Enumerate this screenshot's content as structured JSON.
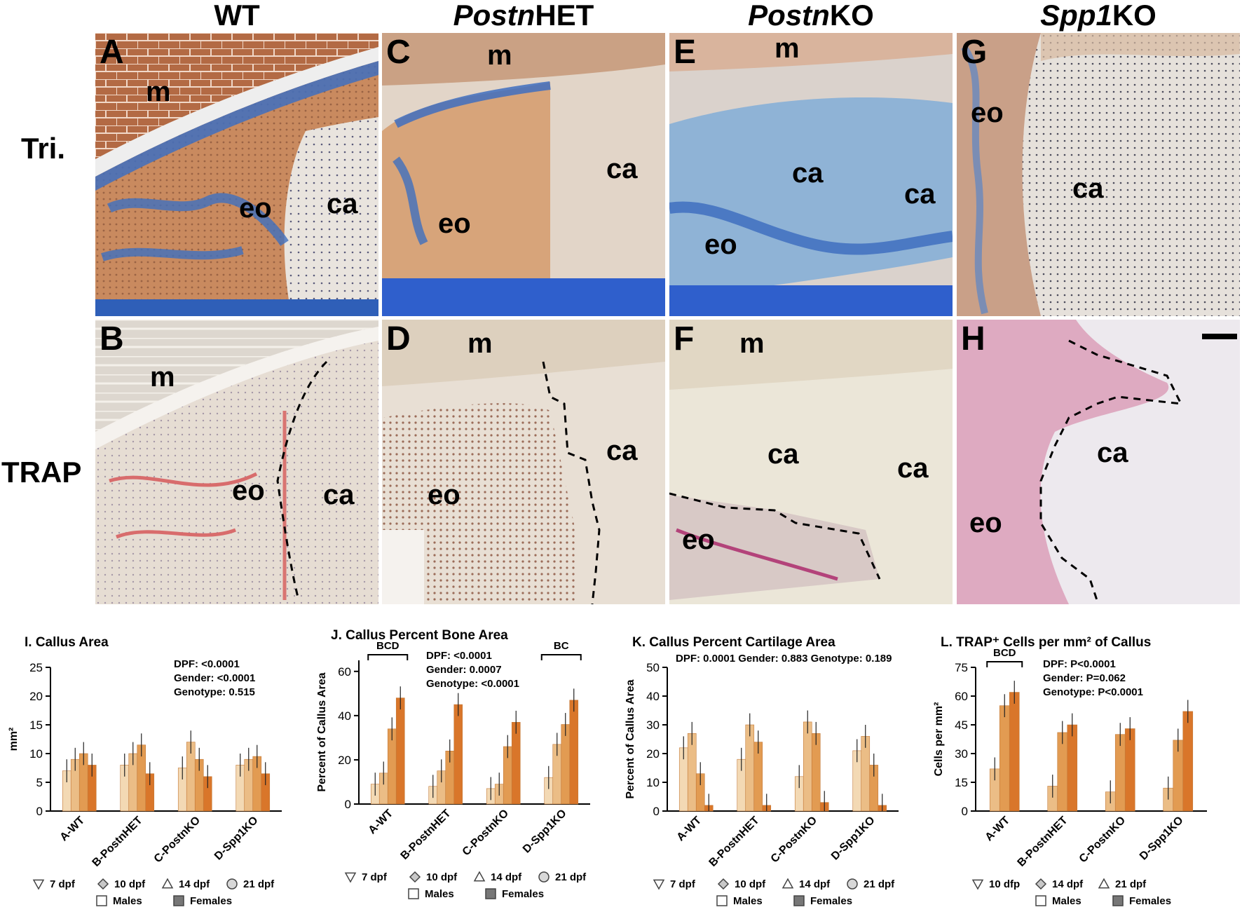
{
  "columns": [
    {
      "plain": "WT",
      "italic": "",
      "suffix": ""
    },
    {
      "plain": "",
      "italic": "Postn",
      "suffix": "HET"
    },
    {
      "plain": "",
      "italic": "Postn",
      "suffix": "KO"
    },
    {
      "plain": "",
      "italic": "Spp1",
      "suffix": "KO"
    }
  ],
  "rows": [
    "Tri.",
    "TRAP"
  ],
  "panels": [
    {
      "letter": "A",
      "labels": [
        "m",
        "eo",
        "ca"
      ]
    },
    {
      "letter": "B",
      "labels": [
        "m",
        "eo",
        "ca"
      ]
    },
    {
      "letter": "C",
      "labels": [
        "m",
        "ca",
        "eo"
      ]
    },
    {
      "letter": "D",
      "labels": [
        "m",
        "ca",
        "eo"
      ]
    },
    {
      "letter": "E",
      "labels": [
        "m",
        "ca",
        "ca",
        "eo"
      ]
    },
    {
      "letter": "F",
      "labels": [
        "m",
        "ca",
        "ca",
        "eo"
      ]
    },
    {
      "letter": "G",
      "labels": [
        "eo",
        "ca"
      ]
    },
    {
      "letter": "H",
      "labels": [
        "ca",
        "eo"
      ]
    }
  ],
  "colors": {
    "trichrome_blue": "#3f6fbf",
    "tissue_orange": "#c8875a",
    "cartilage": "#e9e4de",
    "trap_bg": "#e8e1d6",
    "trap_red": "#c4385b",
    "bar_light": "#f3d9b4",
    "bar_mid1": "#ebbd86",
    "bar_mid2": "#e29b52",
    "bar_dark": "#d9762a"
  },
  "chart_data": [
    {
      "type": "bar",
      "title": "I. Callus Area",
      "ylabel": "mm²",
      "ylim": [
        0,
        25
      ],
      "yticks": [
        0,
        5,
        10,
        15,
        20,
        25
      ],
      "categories": [
        "A-WT",
        "B-PostnHET",
        "C-PostnKO",
        "D-Spp1KO"
      ],
      "series": [
        {
          "name": "7 dpf",
          "values": [
            7,
            8,
            7.5,
            8
          ]
        },
        {
          "name": "10 dpf",
          "values": [
            9,
            10,
            12,
            9
          ]
        },
        {
          "name": "14 dpf",
          "values": [
            10,
            11.5,
            9,
            9.5
          ]
        },
        {
          "name": "21 dpf",
          "values": [
            8,
            6.5,
            6,
            6.5
          ]
        }
      ],
      "stats": [
        "DPF: <0.0001",
        "Gender: <0.0001",
        "Genotype: 0.515"
      ],
      "brackets": [],
      "legend": {
        "dpf": [
          "7 dpf",
          "10 dpf",
          "14 dpf",
          "21 dpf"
        ],
        "sex": [
          "Males",
          "Females"
        ]
      }
    },
    {
      "type": "bar",
      "title": "J. Callus Percent Bone Area",
      "ylabel": "Percent of Callus Area",
      "ylim": [
        0,
        65
      ],
      "yticks": [
        0,
        20,
        40,
        60
      ],
      "categories": [
        "A-WT",
        "B-PostnHET",
        "C-PostnKO",
        "D-Spp1KO"
      ],
      "series": [
        {
          "name": "7 dpf",
          "values": [
            9,
            8,
            7,
            12
          ]
        },
        {
          "name": "10 dpf",
          "values": [
            14,
            15,
            9,
            27
          ]
        },
        {
          "name": "14 dpf",
          "values": [
            34,
            24,
            26,
            36
          ]
        },
        {
          "name": "21 dpf",
          "values": [
            48,
            45,
            37,
            47
          ]
        }
      ],
      "stats": [
        "DPF: <0.0001",
        "Gender: 0.0007",
        "Genotype: <0.0001"
      ],
      "brackets": [
        {
          "label": "BCD",
          "group": 0
        },
        {
          "label": "BC",
          "group": 3
        }
      ],
      "legend": {
        "dpf": [
          "7 dpf",
          "10 dpf",
          "14 dpf",
          "21 dpf"
        ],
        "sex": [
          "Males",
          "Females"
        ]
      }
    },
    {
      "type": "bar",
      "title": "K. Callus Percent Cartilage Area",
      "ylabel": "Percent of Callus Area",
      "ylim": [
        0,
        50
      ],
      "yticks": [
        0,
        10,
        20,
        30,
        40,
        50
      ],
      "categories": [
        "A-WT",
        "B-PostnHET",
        "C-PostnKO",
        "D-Spp1KO"
      ],
      "series": [
        {
          "name": "7 dpf",
          "values": [
            22,
            18,
            12,
            21
          ]
        },
        {
          "name": "10 dpf",
          "values": [
            27,
            30,
            31,
            26
          ]
        },
        {
          "name": "14 dpf",
          "values": [
            13,
            24,
            27,
            16
          ]
        },
        {
          "name": "21 dpf",
          "values": [
            2,
            2,
            3,
            2
          ]
        }
      ],
      "stats": [
        "DPF: 0.0001",
        "Gender: 0.883",
        "Genotype: 0.189"
      ],
      "brackets": [],
      "legend": {
        "dpf": [
          "7 dpf",
          "10 dpf",
          "14 dpf",
          "21 dpf"
        ],
        "sex": [
          "Males",
          "Females"
        ]
      }
    },
    {
      "type": "bar",
      "title": "L. TRAP⁺ Cells per mm² of Callus",
      "ylabel": "Cells per mm²",
      "ylim": [
        0,
        75
      ],
      "yticks": [
        0,
        15,
        30,
        45,
        60,
        75
      ],
      "categories": [
        "A-WT",
        "B-PostnHET",
        "C-PostnKO",
        "D-Spp1KO"
      ],
      "series": [
        {
          "name": "10 dfp",
          "values": [
            22,
            13,
            10,
            12
          ]
        },
        {
          "name": "14 dpf",
          "values": [
            55,
            41,
            40,
            37
          ]
        },
        {
          "name": "21 dpf",
          "values": [
            62,
            45,
            43,
            52
          ]
        }
      ],
      "stats": [
        "DPF: P<0.0001",
        "Gender: P=0.062",
        "Genotype: P<0.0001"
      ],
      "brackets": [
        {
          "label": "BCD",
          "group": 0
        }
      ],
      "legend": {
        "dpf": [
          "10 dfp",
          "14 dpf",
          "21 dpf"
        ],
        "sex": [
          "Males",
          "Females"
        ]
      }
    }
  ]
}
